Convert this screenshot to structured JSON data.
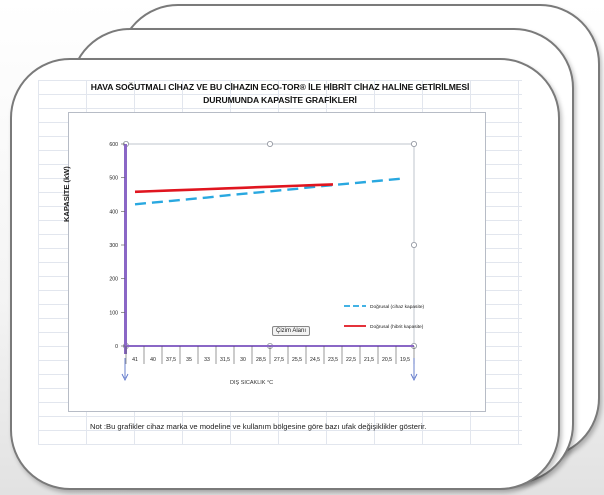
{
  "title_line1": "HAVA SOĞUTMALI CİHAZ VE BU CİHAZIN  ECO-TOR® İLE HİBRİT CİHAZ HALİNE GETİRİLMESİ",
  "title_line2": "DURUMUNDA KAPASİTE GRAFİKLERİ",
  "note": "Not :Bu grafikler cihaz marka ve modeline ve kullanım bölgesine göre bazı ufak değişiklikler gösterir.",
  "tooltip": "Çizim Alanı",
  "chart_data": {
    "type": "line",
    "ylabel": "KAPASİTE (kW)",
    "xlabel": "DIŞ SICAKLIK °C",
    "categories": [
      "41",
      "40",
      "37,5",
      "35",
      "33",
      "31,5",
      "30",
      "28,5",
      "27,5",
      "25,5",
      "24,5",
      "23,5",
      "22,5",
      "21,5",
      "20,5",
      "19,5"
    ],
    "yticks": [
      "0",
      "100",
      "200",
      "300",
      "400",
      "500",
      "600"
    ],
    "ylim": [
      0,
      600
    ],
    "series": [
      {
        "name": "Doğrusal (cihaz kapasite)",
        "color": "#29a8e0",
        "dashed": true,
        "values": [
          421,
          426,
          431,
          436,
          441,
          447,
          452,
          457,
          462,
          467,
          473,
          478,
          483,
          488,
          493,
          498
        ]
      },
      {
        "name": "Doğrusal (hibrit kapasite)",
        "color": "#e0151f",
        "dashed": false,
        "values": [
          458,
          460,
          462,
          464,
          466,
          468,
          470,
          472,
          474,
          476,
          478,
          480,
          null,
          null,
          null,
          null
        ]
      }
    ],
    "legend_position": "right",
    "grid": false
  }
}
